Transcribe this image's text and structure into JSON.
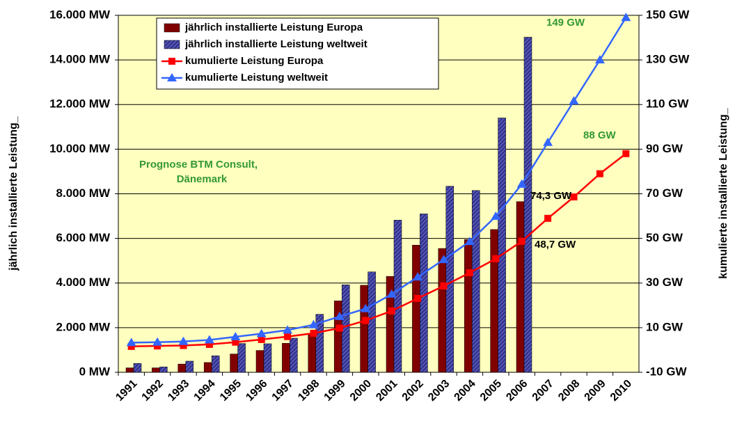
{
  "chart_data": {
    "type": "bar",
    "categories": [
      "1991",
      "1992",
      "1993",
      "1994",
      "1995",
      "1996",
      "1997",
      "1998",
      "1999",
      "2000",
      "2001",
      "2002",
      "2003",
      "2004",
      "2005",
      "2006",
      "2007",
      "2008",
      "2009",
      "2010"
    ],
    "series": [
      {
        "name": "jährlich installierte Leistung Europa",
        "type": "bar",
        "color": "#800000",
        "values": [
          200,
          200,
          370,
          440,
          820,
          980,
          1300,
          1700,
          3200,
          3900,
          4300,
          5700,
          5550,
          5950,
          6400,
          7650,
          null,
          null,
          null,
          null
        ]
      },
      {
        "name": "jährlich installierte Leistung weltweit",
        "type": "bar",
        "color": "#333399",
        "values": [
          400,
          240,
          500,
          740,
          1290,
          1280,
          1530,
          2600,
          3920,
          4500,
          6820,
          7100,
          8340,
          8150,
          11400,
          15020,
          null,
          null,
          null,
          null
        ]
      },
      {
        "name": "kumulierte Leistung Europa",
        "type": "line",
        "axis": "y2",
        "color": "#ff0000",
        "marker": "square",
        "values": [
          1.6,
          1.8,
          2.0,
          2.5,
          3.5,
          4.7,
          6.0,
          7.5,
          9.8,
          13.2,
          17.5,
          23.1,
          28.7,
          34.6,
          40.9,
          48.7,
          59,
          68.6,
          79,
          88
        ]
      },
      {
        "name": "kumulierte Leistung weltweit",
        "type": "line",
        "axis": "y2",
        "color": "#3366ff",
        "marker": "triangle",
        "values": [
          3.3,
          3.5,
          3.8,
          4.5,
          5.9,
          7.3,
          8.9,
          11.3,
          15,
          18.5,
          25,
          32.7,
          40.5,
          48.6,
          59.9,
          74.3,
          93,
          111.6,
          130,
          149
        ]
      }
    ],
    "ylabel": "jährlich installierte Leistung_",
    "y2label": "kumulierte installierte Leistung_",
    "ylim": [
      0,
      16000
    ],
    "yticks": [
      {
        "value": 0,
        "label": "0 MW"
      },
      {
        "value": 2000,
        "label": "2.000 MW"
      },
      {
        "value": 4000,
        "label": "4.000 MW"
      },
      {
        "value": 6000,
        "label": "6.000 MW"
      },
      {
        "value": 8000,
        "label": "8.000 MW"
      },
      {
        "value": 10000,
        "label": "10.000 MW"
      },
      {
        "value": 12000,
        "label": "12.000 MW"
      },
      {
        "value": 14000,
        "label": "14.000 MW"
      },
      {
        "value": 16000,
        "label": "16.000 MW"
      }
    ],
    "y2lim": [
      -10,
      150
    ],
    "y2ticks": [
      {
        "value": -10,
        "label": "-10 GW"
      },
      {
        "value": 10,
        "label": "10 GW"
      },
      {
        "value": 30,
        "label": "30 GW"
      },
      {
        "value": 50,
        "label": "50 GW"
      },
      {
        "value": 70,
        "label": "70 GW"
      },
      {
        "value": 90,
        "label": "90 GW"
      },
      {
        "value": 110,
        "label": "110 GW"
      },
      {
        "value": 130,
        "label": "130 GW"
      },
      {
        "value": 150,
        "label": "150 GW"
      }
    ],
    "grid": true,
    "legend": "top-left",
    "background": "#ffffc0",
    "annotations": [
      {
        "text": "149 GW",
        "color": "#339933"
      },
      {
        "text": "88 GW",
        "color": "#339933"
      },
      {
        "text": "74,3  GW",
        "color": "#000000"
      },
      {
        "text": "48,7  GW",
        "color": "#000000"
      },
      {
        "text": "Prognose BTM Consult,",
        "color": "#339933"
      },
      {
        "text": "Dänemark",
        "color": "#339933"
      }
    ]
  }
}
